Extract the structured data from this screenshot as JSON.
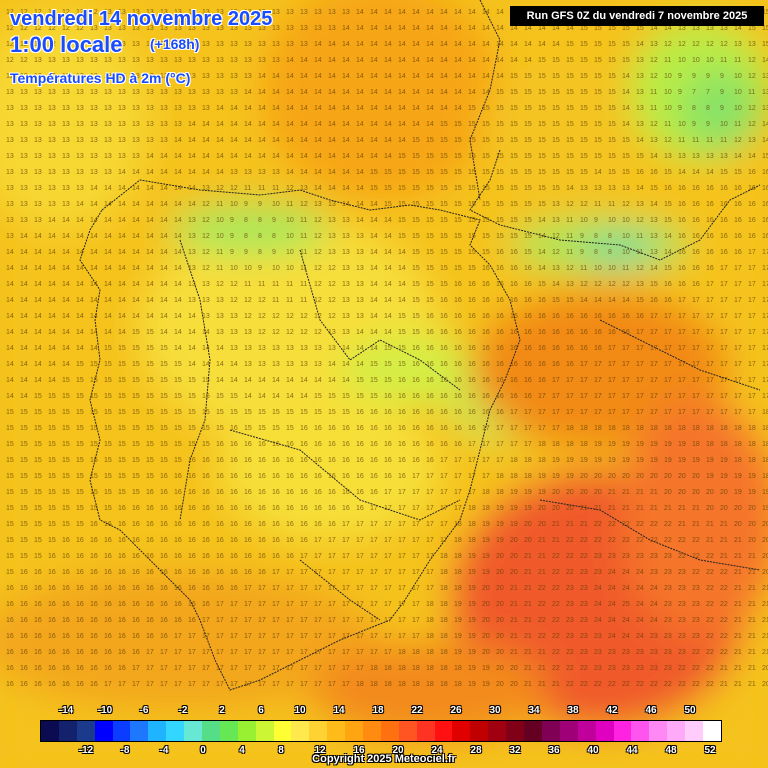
{
  "header": {
    "date": "vendredi 14 novembre 2025",
    "hour": "1:00 locale",
    "lead": "(+168h)",
    "parameter": "Températures HD à 2m (°C)",
    "run": "Run GFS 0Z du vendredi 7 novembre 2025"
  },
  "legend": {
    "top_ticks": [
      "-14",
      "-10",
      "-6",
      "-2",
      "2",
      "6",
      "10",
      "14",
      "18",
      "22",
      "26",
      "30",
      "34",
      "38",
      "42",
      "46",
      "50"
    ],
    "bottom_ticks": [
      "-12",
      "-8",
      "-4",
      "0",
      "4",
      "8",
      "12",
      "16",
      "20",
      "24",
      "28",
      "32",
      "36",
      "40",
      "44",
      "48",
      "52"
    ],
    "colors": [
      "#0b0b52",
      "#14226e",
      "#1c3a8c",
      "#0000ff",
      "#0a3dff",
      "#1e78ff",
      "#1fb4ff",
      "#33d6ff",
      "#66e8d4",
      "#55dd88",
      "#66e855",
      "#99f033",
      "#ccf533",
      "#ffff33",
      "#ffe94d",
      "#ffd233",
      "#ffbb1a",
      "#ffa511",
      "#ff8c11",
      "#ff7011",
      "#ff5522",
      "#ff3322",
      "#ff1111",
      "#e00000",
      "#c00000",
      "#a00010",
      "#800018",
      "#660022",
      "#800055",
      "#a00077",
      "#c0009a",
      "#e000c0",
      "#ff22e0",
      "#ff55ee",
      "#ff88f5",
      "#ffaaf8",
      "#ffccfb",
      "#ffffff"
    ]
  },
  "copyright": "Copyright 2025 Meteociel.fr"
}
